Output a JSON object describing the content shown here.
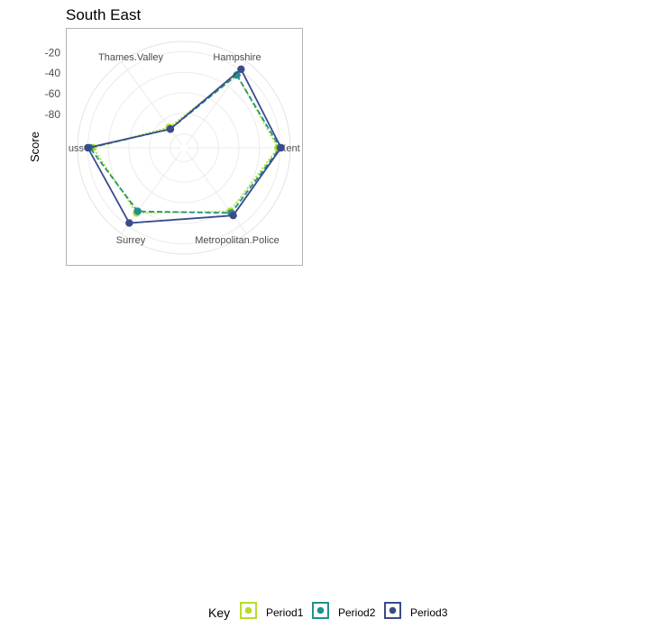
{
  "chart_data": {
    "type": "radar",
    "title": "South East",
    "ylabel": "Score",
    "radial_ticks": [
      "-20",
      "-40",
      "-60",
      "-80"
    ],
    "radial_tick_values": [
      -20,
      -40,
      -60,
      -80
    ],
    "rlim": [
      -110,
      -10
    ],
    "categories": [
      "Hampshire",
      "Kent",
      "Metropolitan.Police",
      "Surrey",
      "Sussex",
      "Thames.Valley"
    ],
    "category_labels": [
      "Hampshire",
      "Kent",
      "Metropolitan.Police",
      "Surrey",
      "uss",
      "Thames.Valley"
    ],
    "series": [
      {
        "name": "Period1",
        "color": "#b5de2b",
        "linestyle": "dotted",
        "values": [
          -26,
          -22,
          -37,
          -35,
          -25,
          -89
        ]
      },
      {
        "name": "Period2",
        "color": "#21918c",
        "linestyle": "dashed",
        "values": [
          -26,
          -20,
          -35,
          -37,
          -22,
          -91
        ]
      },
      {
        "name": "Period3",
        "color": "#3b4b8a",
        "linestyle": "solid",
        "values": [
          -19,
          -19,
          -32,
          -23,
          -20,
          -91
        ]
      }
    ],
    "grid": true,
    "legend_position": "bottom"
  },
  "legend": {
    "title": "Key",
    "items": [
      "Period1",
      "Period2",
      "Period3"
    ]
  }
}
